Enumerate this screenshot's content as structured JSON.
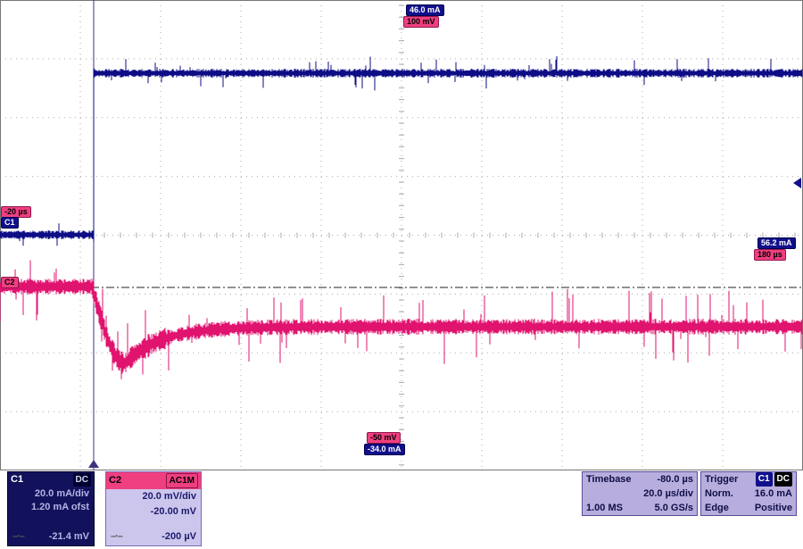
{
  "colors": {
    "c1": "#0d0d86",
    "c2": "#e0136f",
    "grid": "#a8a8a8",
    "border": "#777777",
    "trigger_line": "#41317f",
    "zero_line": "#222222"
  },
  "badges": {
    "top_blue": "46.0 mA",
    "top_pink": "100 mV",
    "bottom_pink": "-50 mV",
    "bottom_blue": "-34.0 mA",
    "right_blue": "56.2 mA",
    "right_pink": "180 µs",
    "left_pink": "-20 µs",
    "c1_marker": "C1",
    "c2_marker": "C2"
  },
  "channel1": {
    "name": "C1",
    "coupling": "DC",
    "scale": "20.0 mA/div",
    "offset": "1.20 mA ofst",
    "bottom_value": "-21.4 mV"
  },
  "channel2": {
    "name": "C2",
    "coupling": "AC1M",
    "scale": "20.0 mV/div",
    "offset": "-20.00 mV",
    "bottom_value": "-200 µV"
  },
  "timebase": {
    "label": "Timebase",
    "delay": "-80.0 µs",
    "per_div": "20.0 µs/div",
    "samples": "1.00 MS",
    "rate": "5.0 GS/s"
  },
  "trigger": {
    "label": "Trigger",
    "source": "C1",
    "coupling": "DC",
    "mode": "Norm.",
    "level": "16.0 mA",
    "type": "Edge",
    "slope": "Positive"
  },
  "icons": {
    "dash_dot": "–·–"
  },
  "waveforms": {
    "c1": {
      "pre_level": 263,
      "post_level": 82,
      "edge_x": 105,
      "noise": 5,
      "spike_prob": 0.05,
      "spike_max": 12
    },
    "c2": {
      "pre_level": 321,
      "dip_start": 103,
      "dip_bottom_x": 140,
      "dip_bottom": 407,
      "recover_tau": 40,
      "post_level": 366,
      "noise": 9,
      "dip_noise": 13,
      "spike_prob": 0.085,
      "spike_max": 30
    },
    "zero_line_y": 322,
    "trigger_line_x": 105,
    "trigger_level_y": 200,
    "trigger_pos_x": 99
  },
  "chart_data": {
    "type": "line",
    "x_axis": {
      "per_div": "20.0 µs",
      "divisions": 10,
      "trigger_delay": "-80.0 µs"
    },
    "series": [
      {
        "name": "C1",
        "scale": "20.0 mA/div",
        "shape": "low noisy level before trigger, fast rising step at trigger, steady noisy high level after"
      },
      {
        "name": "C2",
        "scale": "20.0 mV/div",
        "shape": "noisy level at zero before trigger, negative transient dip at trigger, exponential recovery to slightly lower noisy level with spikes"
      }
    ]
  }
}
